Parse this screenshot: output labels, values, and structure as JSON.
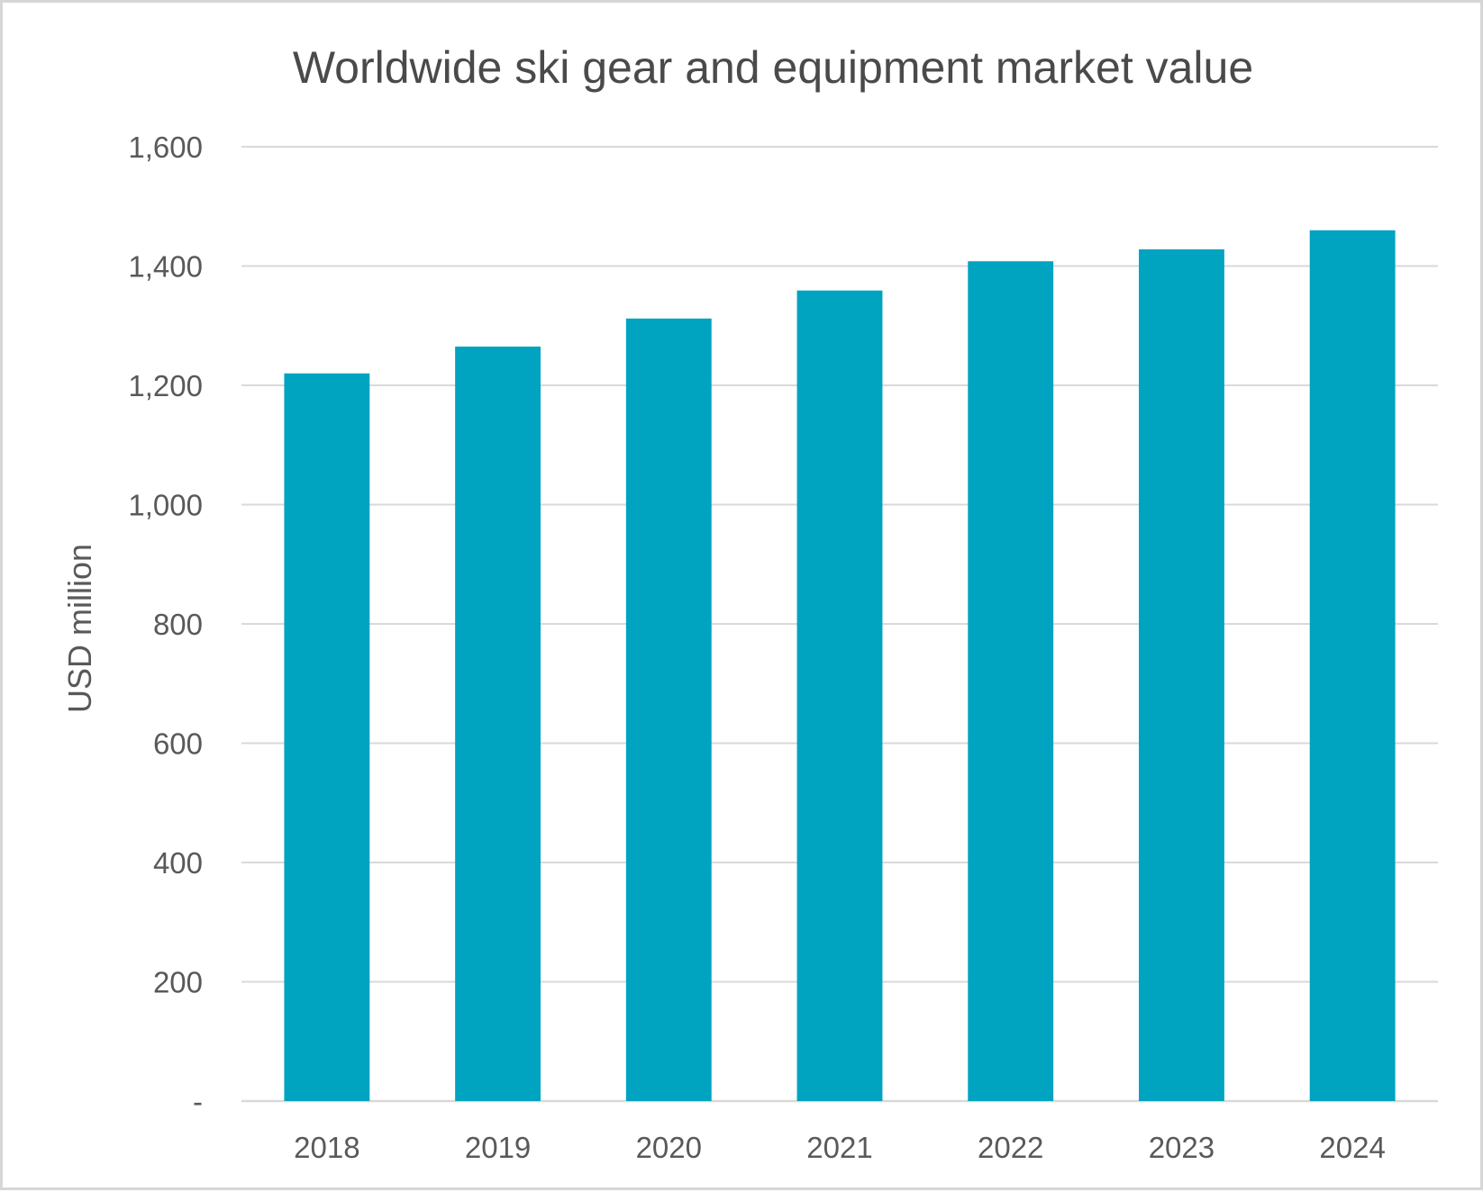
{
  "chart_data": {
    "type": "bar",
    "title": "Worldwide ski gear and equipment market value",
    "xlabel": "",
    "ylabel": "USD million",
    "categories": [
      "2018",
      "2019",
      "2020",
      "2021",
      "2022",
      "2023",
      "2024"
    ],
    "values": [
      1220,
      1265,
      1312,
      1359,
      1408,
      1428,
      1460
    ],
    "ylim": [
      0,
      1600
    ],
    "yticks": [
      0,
      200,
      400,
      600,
      800,
      1000,
      1200,
      1400,
      1600
    ],
    "ytick_labels": [
      "-",
      "200",
      "400",
      "600",
      "800",
      "1,000",
      "1,200",
      "1,400",
      "1,600"
    ],
    "bar_color": "#00A3C0",
    "grid": true,
    "legend": "none"
  }
}
